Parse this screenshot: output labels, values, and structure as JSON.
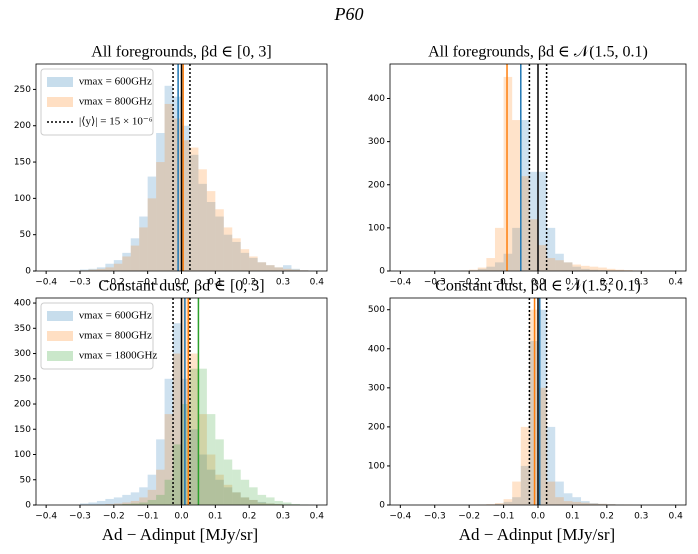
{
  "title": "P60",
  "xlabel": "Ad − Adinput [MJy/sr]",
  "chart_data": [
    {
      "type": "histogram",
      "title": "All foregrounds, βd ∈ [0, 3]",
      "legend": "upper left",
      "bins": [
        -0.3,
        -0.275,
        -0.25,
        -0.225,
        -0.2,
        -0.175,
        -0.15,
        -0.125,
        -0.1,
        -0.075,
        -0.05,
        -0.025,
        0,
        0.025,
        0.05,
        0.075,
        0.1,
        0.125,
        0.15,
        0.175,
        0.2,
        0.225,
        0.25,
        0.275,
        0.3,
        0.325,
        0.35,
        0.375
      ],
      "series": [
        {
          "name": "νmax = 600GHz",
          "color": "#1f77b4",
          "values": [
            2,
            3,
            5,
            10,
            15,
            25,
            45,
            75,
            130,
            190,
            255,
            240,
            200,
            160,
            120,
            95,
            75,
            50,
            40,
            25,
            18,
            12,
            8,
            5,
            8,
            3,
            1
          ]
        },
        {
          "name": "νmax = 800GHz",
          "color": "#ff7f0e",
          "values": [
            1,
            2,
            3,
            5,
            10,
            20,
            35,
            60,
            100,
            150,
            230,
            210,
            180,
            170,
            140,
            110,
            85,
            60,
            45,
            30,
            20,
            12,
            8,
            5,
            3,
            2,
            1
          ]
        }
      ],
      "vlines": [
        {
          "x": -0.01,
          "color": "#1f77b4",
          "style": "solid"
        },
        {
          "x": 0.005,
          "color": "#ff7f0e",
          "style": "solid"
        },
        {
          "x": 0,
          "color": "#000000",
          "style": "solid"
        },
        {
          "x": -0.025,
          "color": "#000000",
          "style": "dotted",
          "name": "|⟨y⟩| = 15 × 10⁻⁶"
        },
        {
          "x": 0.025,
          "color": "#000000",
          "style": "dotted"
        }
      ],
      "xlim": [
        -0.43,
        0.43
      ],
      "xticks": [
        {
          "value": -0.4,
          "label": "−0.4"
        },
        {
          "value": -0.3,
          "label": "−0.3"
        },
        {
          "value": -0.2,
          "label": "−0.2"
        },
        {
          "value": -0.1,
          "label": "−0.1"
        },
        {
          "value": 0,
          "label": "0.0"
        },
        {
          "value": 0.1,
          "label": "0.1"
        },
        {
          "value": 0.2,
          "label": "0.2"
        },
        {
          "value": 0.3,
          "label": "0.3"
        },
        {
          "value": 0.4,
          "label": "0.4"
        }
      ],
      "ylim": [
        0,
        285
      ],
      "yticks": [
        0,
        50,
        100,
        150,
        200,
        250
      ]
    },
    {
      "type": "histogram",
      "title": "All foregrounds, βd ∈ 𝒩(1.5, 0.1)",
      "bins": [
        -0.3,
        -0.275,
        -0.25,
        -0.225,
        -0.2,
        -0.175,
        -0.15,
        -0.125,
        -0.1,
        -0.075,
        -0.05,
        -0.025,
        0,
        0.025,
        0.05,
        0.075,
        0.1,
        0.125,
        0.15,
        0.175,
        0.2,
        0.225,
        0.25,
        0.275,
        0.3,
        0.325,
        0.35,
        0.375
      ],
      "series": [
        {
          "name": "νmax = 600GHz",
          "color": "#1f77b4",
          "values": [
            0,
            0,
            0,
            0,
            2,
            5,
            10,
            20,
            40,
            100,
            350,
            230,
            230,
            100,
            40,
            20,
            10,
            5,
            3,
            2,
            1,
            1,
            0,
            0,
            0,
            0,
            0
          ]
        },
        {
          "name": "νmax = 800GHz",
          "color": "#ff7f0e",
          "values": [
            0,
            0,
            0,
            1,
            3,
            8,
            30,
            100,
            450,
            350,
            220,
            120,
            60,
            30,
            25,
            20,
            15,
            12,
            10,
            8,
            5,
            3,
            2,
            1,
            1,
            0,
            0
          ]
        }
      ],
      "vlines": [
        {
          "x": -0.05,
          "color": "#1f77b4",
          "style": "solid"
        },
        {
          "x": -0.09,
          "color": "#ff7f0e",
          "style": "solid"
        },
        {
          "x": 0,
          "color": "#000000",
          "style": "solid"
        },
        {
          "x": -0.025,
          "color": "#000000",
          "style": "dotted"
        },
        {
          "x": 0.025,
          "color": "#000000",
          "style": "dotted"
        }
      ],
      "xlim": [
        -0.43,
        0.43
      ],
      "xticks": [
        {
          "value": -0.4,
          "label": "−0.4"
        },
        {
          "value": -0.3,
          "label": "−0.3"
        },
        {
          "value": -0.2,
          "label": "−0.2"
        },
        {
          "value": -0.1,
          "label": "−0.1"
        },
        {
          "value": 0,
          "label": "0.0"
        },
        {
          "value": 0.1,
          "label": "0.1"
        },
        {
          "value": 0.2,
          "label": "0.2"
        },
        {
          "value": 0.3,
          "label": "0.3"
        },
        {
          "value": 0.4,
          "label": "0.4"
        }
      ],
      "ylim": [
        0,
        480
      ],
      "yticks": [
        0,
        100,
        200,
        300,
        400
      ]
    },
    {
      "type": "histogram",
      "title": "Constant dust, βd ∈ [0, 3]",
      "legend": "upper left",
      "bins": [
        -0.3,
        -0.275,
        -0.25,
        -0.225,
        -0.2,
        -0.175,
        -0.15,
        -0.125,
        -0.1,
        -0.075,
        -0.05,
        -0.025,
        0,
        0.025,
        0.05,
        0.075,
        0.1,
        0.125,
        0.15,
        0.175,
        0.2,
        0.225,
        0.25,
        0.275,
        0.3,
        0.325,
        0.35,
        0.375
      ],
      "series": [
        {
          "name": "νmax = 600GHz",
          "color": "#1f77b4",
          "values": [
            3,
            5,
            8,
            12,
            15,
            20,
            25,
            35,
            60,
            130,
            250,
            360,
            250,
            150,
            100,
            70,
            50,
            35,
            25,
            15,
            10,
            6,
            3,
            2,
            1,
            0,
            0
          ]
        },
        {
          "name": "νmax = 800GHz",
          "color": "#ff7f0e",
          "values": [
            0,
            0,
            1,
            2,
            3,
            5,
            8,
            15,
            30,
            70,
            180,
            300,
            410,
            300,
            180,
            100,
            60,
            40,
            25,
            15,
            10,
            5,
            3,
            2,
            1,
            0,
            0
          ]
        },
        {
          "name": "νmax = 1800GHz",
          "color": "#2ca02c",
          "values": [
            0,
            0,
            0,
            0,
            1,
            2,
            3,
            5,
            10,
            20,
            50,
            120,
            200,
            270,
            270,
            180,
            130,
            90,
            70,
            50,
            35,
            20,
            15,
            8,
            5,
            2,
            1
          ]
        }
      ],
      "vlines": [
        {
          "x": 0.01,
          "color": "#1f77b4",
          "style": "solid"
        },
        {
          "x": 0.02,
          "color": "#ff7f0e",
          "style": "solid"
        },
        {
          "x": 0.05,
          "color": "#2ca02c",
          "style": "solid"
        },
        {
          "x": 0,
          "color": "#000000",
          "style": "solid"
        },
        {
          "x": -0.025,
          "color": "#000000",
          "style": "dotted"
        },
        {
          "x": 0.025,
          "color": "#000000",
          "style": "dotted"
        }
      ],
      "xlim": [
        -0.43,
        0.43
      ],
      "xticks": [
        {
          "value": -0.4,
          "label": "−0.4"
        },
        {
          "value": -0.3,
          "label": "−0.3"
        },
        {
          "value": -0.2,
          "label": "−0.2"
        },
        {
          "value": -0.1,
          "label": "−0.1"
        },
        {
          "value": 0,
          "label": "0.0"
        },
        {
          "value": 0.1,
          "label": "0.1"
        },
        {
          "value": 0.2,
          "label": "0.2"
        },
        {
          "value": 0.3,
          "label": "0.3"
        },
        {
          "value": 0.4,
          "label": "0.4"
        }
      ],
      "ylim": [
        0,
        410
      ],
      "yticks": [
        0,
        50,
        100,
        150,
        200,
        250,
        300,
        350,
        400
      ]
    },
    {
      "type": "histogram",
      "title": "Constant dust, βd ∈ 𝒩(1.5, 0.1)",
      "bins": [
        -0.3,
        -0.275,
        -0.25,
        -0.225,
        -0.2,
        -0.175,
        -0.15,
        -0.125,
        -0.1,
        -0.075,
        -0.05,
        -0.025,
        0,
        0.025,
        0.05,
        0.075,
        0.1,
        0.125,
        0.15,
        0.175,
        0.2,
        0.225,
        0.25,
        0.275,
        0.3,
        0.325,
        0.35,
        0.375
      ],
      "series": [
        {
          "name": "νmax = 600GHz",
          "color": "#1f77b4",
          "values": [
            0,
            0,
            0,
            0,
            0,
            0,
            1,
            3,
            8,
            20,
            100,
            420,
            500,
            200,
            60,
            30,
            20,
            10,
            5,
            3,
            2,
            1,
            0,
            0,
            0,
            0,
            0
          ]
        },
        {
          "name": "νmax = 800GHz",
          "color": "#ff7f0e",
          "values": [
            0,
            0,
            0,
            0,
            0,
            1,
            2,
            5,
            15,
            60,
            200,
            500,
            300,
            60,
            20,
            10,
            8,
            6,
            4,
            3,
            2,
            1,
            1,
            0,
            0,
            0,
            0
          ]
        }
      ],
      "vlines": [
        {
          "x": 0.005,
          "color": "#1f77b4",
          "style": "solid"
        },
        {
          "x": -0.01,
          "color": "#ff7f0e",
          "style": "solid"
        },
        {
          "x": 0,
          "color": "#000000",
          "style": "solid"
        },
        {
          "x": -0.025,
          "color": "#000000",
          "style": "dotted"
        },
        {
          "x": 0.025,
          "color": "#000000",
          "style": "dotted"
        }
      ],
      "xlim": [
        -0.43,
        0.43
      ],
      "xticks": [
        {
          "value": -0.4,
          "label": "−0.4"
        },
        {
          "value": -0.3,
          "label": "−0.3"
        },
        {
          "value": -0.2,
          "label": "−0.2"
        },
        {
          "value": -0.1,
          "label": "−0.1"
        },
        {
          "value": 0,
          "label": "0.0"
        },
        {
          "value": 0.1,
          "label": "0.1"
        },
        {
          "value": 0.2,
          "label": "0.2"
        },
        {
          "value": 0.3,
          "label": "0.3"
        },
        {
          "value": 0.4,
          "label": "0.4"
        }
      ],
      "ylim": [
        0,
        530
      ],
      "yticks": [
        0,
        100,
        200,
        300,
        400,
        500
      ]
    }
  ]
}
